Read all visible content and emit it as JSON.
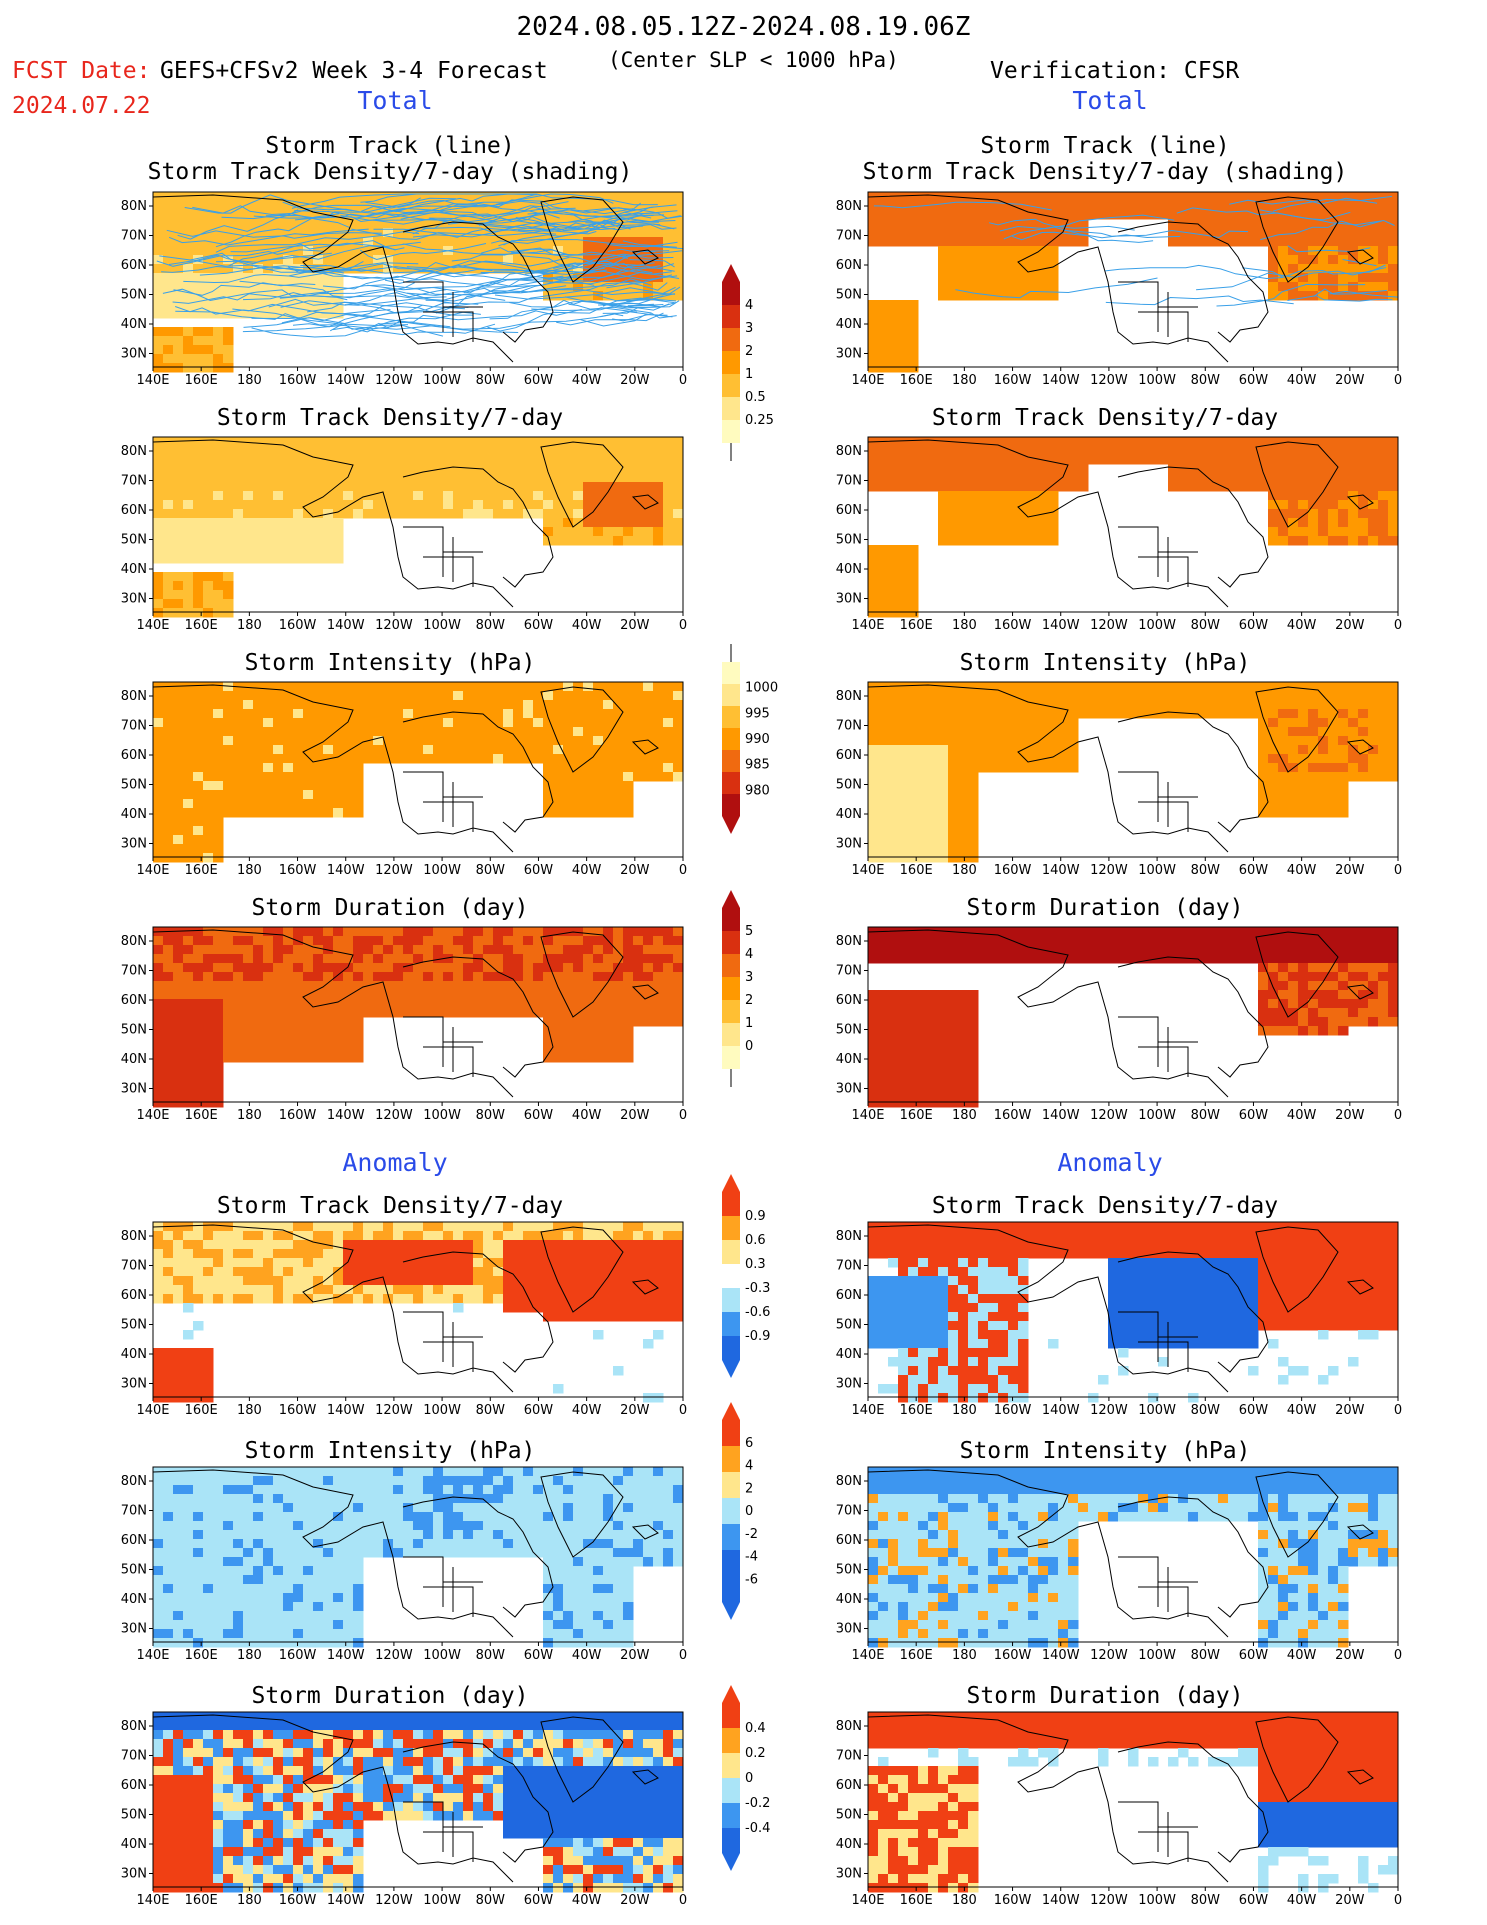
{
  "header": {
    "title": "2024.08.05.12Z-2024.08.19.06Z",
    "fcst_label": "FCST Date:",
    "fcst_model": "GEFS+CFSv2 Week 3-4 Forecast",
    "center_slp": "(Center SLP < 1000 hPa)",
    "fcst_date": "2024.07.22",
    "verification": "Verification: CFSR"
  },
  "sections": {
    "total_left": "Total",
    "total_right": "Total",
    "anomaly_left": "Anomaly",
    "anomaly_right": "Anomaly"
  },
  "panel_titles": {
    "track_line": "Storm Track (line)",
    "track_density_shading": "Storm Track Density/7-day (shading)",
    "track_density": "Storm Track Density/7-day",
    "intensity": "Storm Intensity (hPa)",
    "duration": "Storm Duration (day)"
  },
  "axes": {
    "lon_ticks": [
      "140E",
      "160E",
      "180",
      "160W",
      "140W",
      "120W",
      "100W",
      "80W",
      "60W",
      "40W",
      "20W",
      "0"
    ],
    "lat_ticks": [
      "80N",
      "70N",
      "60N",
      "50N",
      "40N",
      "30N"
    ]
  },
  "colorbars": {
    "density_total": [
      "4",
      "3",
      "2",
      "1",
      "0.5",
      "0.25"
    ],
    "intensity_total": [
      "1000",
      "995",
      "990",
      "985",
      "980"
    ],
    "duration_total": [
      "5",
      "4",
      "3",
      "2",
      "1",
      "0"
    ],
    "density_anom": [
      "0.9",
      "0.6",
      "0.3",
      "-0.3",
      "-0.6",
      "-0.9"
    ],
    "intensity_anom": [
      "6",
      "4",
      "2",
      "0",
      "-2",
      "-4",
      "-6"
    ],
    "duration_anom": [
      "0.4",
      "0.2",
      "0",
      "-0.2",
      "-0.4"
    ]
  },
  "colors": {
    "total_scale": [
      "#fffbbf",
      "#ffe68c",
      "#ffbf33",
      "#ff9900",
      "#f06a10",
      "#d93010",
      "#b00f0f"
    ],
    "anom_scale": [
      "#1f68e0",
      "#3d96f0",
      "#aae4f7",
      "#ffffff",
      "#ffe68c",
      "#ffa31f",
      "#f04014"
    ],
    "section_blue": "#2a4be8",
    "fcst_red": "#e8261c",
    "track_line": "#3aa0e8"
  }
}
